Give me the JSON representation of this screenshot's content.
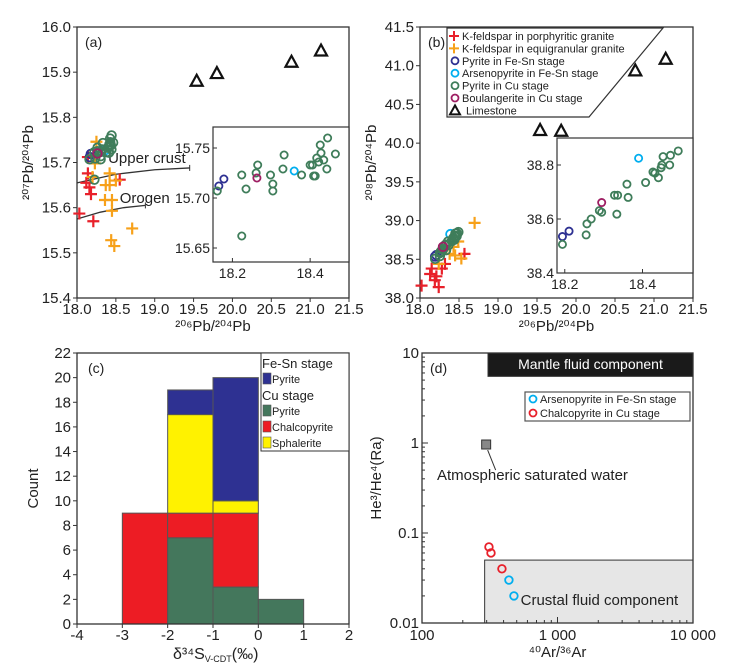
{
  "colors": {
    "red": "#e8202a",
    "orange": "#f7a11a",
    "navy": "#2e3192",
    "cyan": "#00aeef",
    "green": "#3f7d5a",
    "magenta": "#9e1f63",
    "black": "#111111",
    "yellow": "#fff200",
    "bar_green": "#44775c",
    "bar_red": "#ed1c24"
  },
  "chart_data": [
    {
      "panel": "(a)",
      "type": "scatter",
      "xlabel": "²⁰⁶Pb/²⁰⁴Pb",
      "ylabel": "²⁰⁷Pb/²⁰⁴Pb",
      "xlim": [
        18.0,
        21.5
      ],
      "ylim": [
        15.4,
        16.0
      ],
      "xticks": [
        "18.0",
        "18.5",
        "19.0",
        "19.5",
        "20.0",
        "20.5",
        "21.0",
        "21.5"
      ],
      "yticks": [
        "15.4",
        "15.5",
        "15.6",
        "15.7",
        "15.8",
        "15.9",
        "16.0"
      ],
      "curves": [
        {
          "label": "Upper crust",
          "points": [
            [
              18.0,
              15.655
            ],
            [
              18.5,
              15.674
            ],
            [
              19.0,
              15.684
            ],
            [
              19.45,
              15.688
            ]
          ]
        },
        {
          "label": "Orogen",
          "points": [
            [
              18.0,
              15.575
            ],
            [
              18.3,
              15.59
            ],
            [
              18.6,
              15.6
            ],
            [
              18.88,
              15.605
            ]
          ]
        }
      ],
      "series": [
        {
          "name": "K-feldspar in porphyritic granite",
          "marker": "plus",
          "color": "#e8202a",
          "points": [
            [
              18.03,
              15.587
            ],
            [
              18.21,
              15.57
            ],
            [
              18.14,
              15.676
            ],
            [
              18.12,
              15.655
            ],
            [
              18.16,
              15.645
            ],
            [
              18.18,
              15.63
            ],
            [
              18.14,
              15.712
            ],
            [
              18.55,
              15.662
            ]
          ]
        },
        {
          "name": "K-feldspar in equigranular granite",
          "marker": "plus",
          "color": "#f7a11a",
          "points": [
            [
              18.25,
              15.746
            ],
            [
              18.23,
              15.698
            ],
            [
              18.42,
              15.676
            ],
            [
              18.37,
              15.65
            ],
            [
              18.36,
              15.617
            ],
            [
              18.45,
              15.617
            ],
            [
              18.45,
              15.593
            ],
            [
              18.44,
              15.528
            ],
            [
              18.48,
              15.515
            ],
            [
              18.71,
              15.554
            ],
            [
              18.5,
              15.66
            ],
            [
              18.42,
              15.65
            ],
            [
              18.2,
              15.668
            ]
          ]
        },
        {
          "name": "Pyrite in Fe-Sn stage",
          "marker": "circle",
          "color": "#2e3192",
          "points": [
            [
              18.165,
              15.712
            ],
            [
              18.178,
              15.719
            ]
          ]
        },
        {
          "name": "Arsenopyrite in Fe-Sn stage",
          "marker": "circle",
          "color": "#00aeef",
          "points": [
            [
              18.359,
              15.727
            ]
          ]
        },
        {
          "name": "Pyrite in Cu stage",
          "marker": "circle",
          "color": "#3f7d5a",
          "points": [
            [
              18.161,
              15.707
            ],
            [
              18.224,
              15.723
            ],
            [
              18.235,
              15.709
            ],
            [
              18.265,
              15.733
            ],
            [
              18.261,
              15.725
            ],
            [
              18.298,
              15.723
            ],
            [
              18.304,
              15.714
            ],
            [
              18.304,
              15.707
            ],
            [
              18.333,
              15.743
            ],
            [
              18.33,
              15.729
            ],
            [
              18.378,
              15.723
            ],
            [
              18.4,
              15.733
            ],
            [
              18.406,
              15.733
            ],
            [
              18.409,
              15.722
            ],
            [
              18.413,
              15.722
            ],
            [
              18.426,
              15.753
            ],
            [
              18.428,
              15.745
            ],
            [
              18.417,
              15.74
            ],
            [
              18.422,
              15.736
            ],
            [
              18.435,
              15.738
            ],
            [
              18.443,
              15.729
            ],
            [
              18.445,
              15.76
            ],
            [
              18.465,
              15.744
            ],
            [
              18.224,
              15.662
            ]
          ]
        },
        {
          "name": "Boulangerite in Cu stage",
          "marker": "circle",
          "color": "#9e1f63",
          "points": [
            [
              18.263,
              15.72
            ]
          ]
        },
        {
          "name": "Limestone",
          "marker": "triangle",
          "color": "#111111",
          "points": [
            [
              19.54,
              15.881
            ],
            [
              19.8,
              15.898
            ],
            [
              20.76,
              15.923
            ],
            [
              21.14,
              15.948
            ]
          ]
        }
      ],
      "inset": {
        "xlim": [
          18.15,
          18.5
        ],
        "ylim": [
          15.636,
          15.771
        ],
        "xticks": [
          "18.2",
          "18.4"
        ],
        "yticks": [
          "15.65",
          "15.70",
          "15.75"
        ]
      }
    },
    {
      "panel": "(b)",
      "type": "scatter",
      "xlabel": "²⁰⁶Pb/²⁰⁴Pb",
      "ylabel": "²⁰⁸Pb/²⁰⁴Pb",
      "xlim": [
        18.0,
        21.5
      ],
      "ylim": [
        38.0,
        41.5
      ],
      "xticks": [
        "18.0",
        "18.5",
        "19.0",
        "19.5",
        "20.0",
        "20.5",
        "21.0",
        "21.5"
      ],
      "yticks": [
        "38.0",
        "38.5",
        "39.0",
        "39.5",
        "40.0",
        "40.5",
        "41.0",
        "41.5"
      ],
      "legend": "top-left",
      "series": [
        {
          "name": "K-feldspar in porphyritic granite",
          "marker": "plus",
          "color": "#e8202a",
          "points": [
            [
              18.02,
              38.16
            ],
            [
              18.13,
              38.31
            ],
            [
              18.15,
              38.38
            ],
            [
              18.21,
              38.28
            ],
            [
              18.24,
              38.14
            ],
            [
              18.28,
              38.38
            ],
            [
              18.32,
              38.44
            ],
            [
              18.57,
              38.57
            ],
            [
              18.19,
              38.23
            ]
          ]
        },
        {
          "name": "K-feldspar in equigranular granite",
          "marker": "plus",
          "color": "#f7a11a",
          "points": [
            [
              18.7,
              38.97
            ],
            [
              18.24,
              38.44
            ],
            [
              18.43,
              38.66
            ],
            [
              18.45,
              38.55
            ],
            [
              18.53,
              38.51
            ],
            [
              18.49,
              38.73
            ],
            [
              18.38,
              38.57
            ]
          ]
        },
        {
          "name": "Pyrite in Fe-Sn stage",
          "marker": "circle",
          "color": "#2e3192",
          "points": [
            [
              18.194,
              38.535
            ],
            [
              18.211,
              38.555
            ]
          ]
        },
        {
          "name": "Arsenopyrite in Fe-Sn stage",
          "marker": "circle",
          "color": "#00aeef",
          "points": [
            [
              18.39,
              38.825
            ]
          ]
        },
        {
          "name": "Pyrite in Cu stage",
          "marker": "circle",
          "color": "#3f7d5a",
          "points": [
            [
              18.194,
              38.506
            ],
            [
              18.255,
              38.541
            ],
            [
              18.257,
              38.582
            ],
            [
              18.268,
              38.6
            ],
            [
              18.289,
              38.631
            ],
            [
              18.295,
              38.625
            ],
            [
              18.328,
              38.688
            ],
            [
              18.336,
              38.688
            ],
            [
              18.334,
              38.618
            ],
            [
              18.36,
              38.729
            ],
            [
              18.363,
              38.68
            ],
            [
              18.408,
              38.735
            ],
            [
              18.427,
              38.774
            ],
            [
              18.432,
              38.77
            ],
            [
              18.441,
              38.753
            ],
            [
              18.448,
              38.79
            ],
            [
              18.453,
              38.831
            ],
            [
              18.45,
              38.8
            ],
            [
              18.47,
              38.8
            ],
            [
              18.472,
              38.836
            ],
            [
              18.492,
              38.852
            ]
          ]
        },
        {
          "name": "Boulangerite in Cu stage",
          "marker": "circle",
          "color": "#9e1f63",
          "points": [
            [
              18.295,
              38.661
            ]
          ]
        },
        {
          "name": "Limestone",
          "marker": "triangle",
          "color": "#111111",
          "points": [
            [
              19.54,
              40.17
            ],
            [
              19.81,
              40.16
            ],
            [
              20.76,
              40.94
            ],
            [
              21.15,
              41.09
            ]
          ]
        }
      ],
      "inset": {
        "xlim": [
          18.18,
          18.53
        ],
        "ylim": [
          38.4,
          38.9
        ],
        "xticks": [
          "18.2",
          "18.4"
        ],
        "yticks": [
          "38.4",
          "38.6",
          "38.8"
        ]
      }
    },
    {
      "panel": "(c)",
      "type": "bar",
      "stacked": true,
      "xlabel": "δ³⁴S",
      "xlabel_sub": "V-CDT",
      "xlabel_unit": "(‰)",
      "ylabel": "Count",
      "xlim": [
        -4,
        2
      ],
      "ylim": [
        0,
        22
      ],
      "xticks": [
        "-4",
        "-3",
        "-2",
        "-1",
        "0",
        "1",
        "2"
      ],
      "yticks": [
        "0",
        "2",
        "4",
        "6",
        "8",
        "10",
        "12",
        "14",
        "16",
        "18",
        "20",
        "22"
      ],
      "bin_starts": [
        -3,
        -2,
        -1,
        0
      ],
      "bin_width": 1,
      "legend": "top-right",
      "legend_groups": [
        {
          "title": "Fe-Sn stage",
          "items": [
            3
          ]
        },
        {
          "title": "Cu stage",
          "items": [
            0,
            1,
            2
          ]
        }
      ],
      "series": [
        {
          "name": "Pyrite",
          "stage": "Cu stage",
          "color": "#44775c",
          "values": [
            0,
            7,
            3,
            2
          ]
        },
        {
          "name": "Chalcopyrite",
          "stage": "Cu stage",
          "color": "#ed1c24",
          "values": [
            9,
            2,
            6,
            0
          ]
        },
        {
          "name": "Sphalerite",
          "stage": "Cu stage",
          "color": "#fff200",
          "values": [
            0,
            8,
            1,
            0
          ]
        },
        {
          "name": "Pyrite",
          "stage": "Fe-Sn stage",
          "color": "#2e3192",
          "values": [
            0,
            2,
            10,
            0
          ]
        }
      ]
    },
    {
      "panel": "(d)",
      "type": "scatter",
      "xscale": "log",
      "yscale": "log",
      "xlabel": "⁴⁰Ar/³⁶Ar",
      "ylabel": "He³/He⁴(Ra)",
      "xlim": [
        100,
        10000
      ],
      "ylim": [
        0.01,
        10
      ],
      "xticks": [
        [
          100,
          "100"
        ],
        [
          1000,
          "1 000"
        ],
        [
          10000,
          "10 000"
        ]
      ],
      "yticks": [
        [
          0.01,
          "0.01"
        ],
        [
          0.1,
          "0.1"
        ],
        [
          1,
          "1"
        ],
        [
          10,
          "10"
        ]
      ],
      "legend": "top-right",
      "regions": [
        {
          "label": "Mantle fluid component",
          "x": [
            307,
            10000
          ],
          "y": [
            5.5,
            10
          ],
          "fill": "#1a1a1a",
          "text_color": "#ffffff"
        },
        {
          "label": "Crustal fluid component",
          "x": [
            290,
            10000
          ],
          "y": [
            0.01,
            0.05
          ],
          "fill": "#e6e6e6",
          "text_color": "#222222"
        }
      ],
      "reference_point": {
        "label": "Atmospheric saturated water",
        "x": 295,
        "y": 0.95,
        "color": "#888888"
      },
      "series": [
        {
          "name": "Arsenopyrite in Fe-Sn stage",
          "marker": "circle",
          "color": "#00aeef",
          "points": [
            [
              438,
              0.03
            ],
            [
              477,
              0.02
            ]
          ]
        },
        {
          "name": "Chalcopyrite in Cu stage",
          "marker": "circle",
          "color": "#e8202a",
          "points": [
            [
              312,
              0.07
            ],
            [
              323,
              0.06
            ],
            [
              389,
              0.04
            ]
          ]
        }
      ]
    }
  ]
}
